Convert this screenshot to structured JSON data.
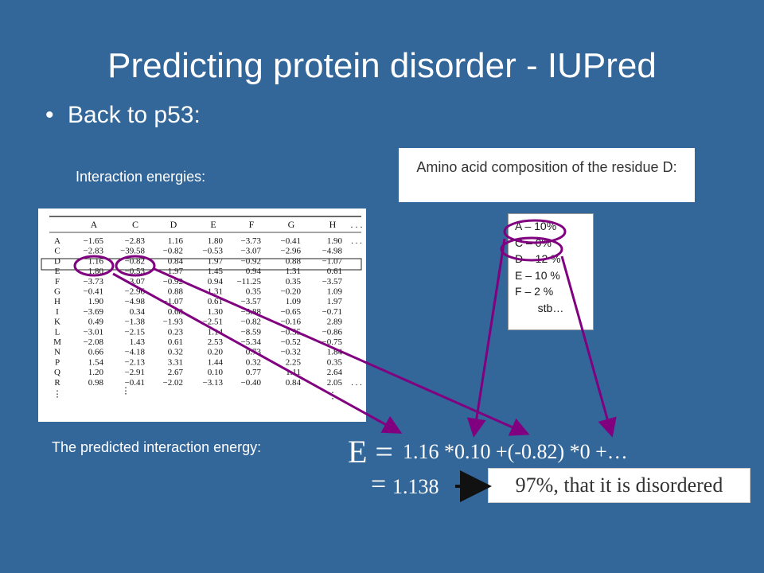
{
  "slide": {
    "title": "Predicting protein disorder - IUPred",
    "bullet": "Back to p53:",
    "interaction_label": "Interaction energies:",
    "predicted_label": "The predicted interaction energy:",
    "composition_title": "Amino acid composition of the residue D:",
    "composition": [
      "A – 10%",
      "C – 0%",
      "D – 12 %",
      "E – 10 %",
      "F – 2 %",
      "stb…"
    ],
    "equation_e": "E =",
    "equation_rhs": "1.16 *0.10 +(-0.82) *0 +…",
    "equation_eq": "=",
    "equation_value": "1.138",
    "result": "97%, that it is disordered",
    "colors": {
      "background": "#336699",
      "annotation": "#800080"
    }
  },
  "matrix": {
    "columns": [
      "A",
      "C",
      "D",
      "E",
      "F",
      "G",
      "H",
      ". . ."
    ],
    "rows": [
      {
        "label": "A",
        "values": [
          "−1.65",
          "−2.83",
          "1.16",
          "1.80",
          "−3.73",
          "−0.41",
          "1.90",
          ". . ."
        ]
      },
      {
        "label": "C",
        "values": [
          "−2.83",
          "−39.58",
          "−0.82",
          "−0.53",
          "−3.07",
          "−2.96",
          "−4.98",
          ""
        ]
      },
      {
        "label": "D",
        "values": [
          "1.16",
          "−0.82",
          "0.84",
          "1.97",
          "−0.92",
          "0.88",
          "−1.07",
          ""
        ]
      },
      {
        "label": "E",
        "values": [
          "1.80",
          "−0.53",
          "1.97",
          "1.45",
          "0.94",
          "1.31",
          "0.61",
          ""
        ]
      },
      {
        "label": "F",
        "values": [
          "−3.73",
          "−3.07",
          "−0.92",
          "0.94",
          "−11.25",
          "0.35",
          "−3.57",
          ""
        ]
      },
      {
        "label": "G",
        "values": [
          "−0.41",
          "−2.96",
          "0.88",
          "1.31",
          "0.35",
          "−0.20",
          "1.09",
          ""
        ]
      },
      {
        "label": "H",
        "values": [
          "1.90",
          "−4.98",
          "−1.07",
          "0.61",
          "−3.57",
          "1.09",
          "1.97",
          ""
        ]
      },
      {
        "label": "I",
        "values": [
          "−3.69",
          "0.34",
          "0.68",
          "1.30",
          "−5.88",
          "−0.65",
          "−0.71",
          ""
        ]
      },
      {
        "label": "K",
        "values": [
          "0.49",
          "−1.38",
          "−1.93",
          "−2.51",
          "−0.82",
          "−0.16",
          "2.89",
          ""
        ]
      },
      {
        "label": "L",
        "values": [
          "−3.01",
          "−2.15",
          "0.23",
          "1.14",
          "−8.59",
          "−0.55",
          "−0.86",
          ""
        ]
      },
      {
        "label": "M",
        "values": [
          "−2.08",
          "1.43",
          "0.61",
          "2.53",
          "−5.34",
          "−0.52",
          "−0.75",
          ""
        ]
      },
      {
        "label": "N",
        "values": [
          "0.66",
          "−4.18",
          "0.32",
          "0.20",
          "0.73",
          "−0.32",
          "1.84",
          ""
        ]
      },
      {
        "label": "P",
        "values": [
          "1.54",
          "−2.13",
          "3.31",
          "1.44",
          "0.32",
          "2.25",
          "0.35",
          ""
        ]
      },
      {
        "label": "Q",
        "values": [
          "1.20",
          "−2.91",
          "2.67",
          "0.10",
          "0.77",
          "1.11",
          "2.64",
          ""
        ]
      },
      {
        "label": "R",
        "values": [
          "0.98",
          "−0.41",
          "−2.02",
          "−3.13",
          "−0.40",
          "0.84",
          "2.05",
          ". . ."
        ]
      }
    ],
    "vdots": "⋮"
  }
}
